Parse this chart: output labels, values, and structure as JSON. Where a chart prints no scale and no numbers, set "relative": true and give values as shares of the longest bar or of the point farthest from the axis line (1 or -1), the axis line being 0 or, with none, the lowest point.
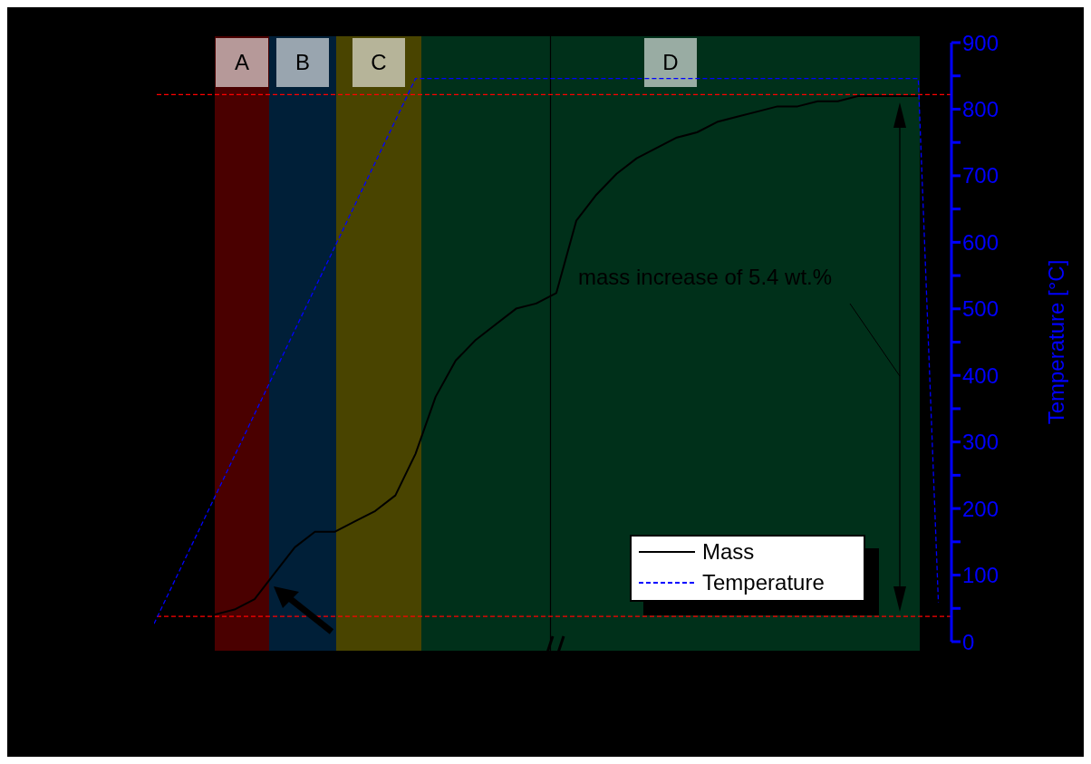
{
  "chart_data": [
    {
      "type": "line",
      "ylabel": "Temperature [°C]",
      "categories": [
        null,
        null,
        null,
        null,
        null,
        null,
        null,
        null,
        null,
        null,
        null,
        null,
        null,
        null,
        null,
        null,
        null,
        null,
        null,
        null,
        null,
        null,
        null,
        null,
        null,
        null,
        null,
        null,
        null,
        null,
        null,
        null,
        null,
        null,
        null,
        null,
        null,
        null,
        null,
        null
      ],
      "series": [
        {
          "name": "Temperature",
          "color": "#0000ff",
          "line_style": "dashed",
          "values": [
            27,
            90,
            153,
            216,
            279,
            342,
            405,
            468,
            531,
            594,
            657,
            720,
            783,
            846,
            846,
            846,
            846,
            846,
            846,
            846,
            846,
            846,
            846,
            846,
            846,
            846,
            846,
            846,
            846,
            846,
            846,
            846,
            846,
            846,
            846,
            846,
            846,
            846,
            846,
            59
          ]
        }
      ],
      "ylim": [
        0,
        900
      ],
      "yticks": [
        0,
        {
          "value": 50,
          "label": null
        },
        100,
        {
          "value": 150,
          "label": null
        },
        200,
        {
          "value": 250,
          "label": null
        },
        300,
        {
          "value": 350,
          "label": null
        },
        400,
        {
          "value": 450,
          "label": null
        },
        500,
        {
          "value": 550,
          "label": null
        },
        600,
        {
          "value": 650,
          "label": null
        },
        700,
        {
          "value": 750,
          "label": null
        },
        800,
        {
          "value": 850,
          "label": null
        },
        900
      ],
      "ref_lines": [
        {
          "axis": "y",
          "value": 38,
          "color": "#ff0000",
          "line_style": "dashed"
        },
        {
          "axis": "y",
          "value": 822,
          "color": "#ff0000",
          "line_style": "dashed"
        }
      ],
      "annotations": [
        "A",
        "B",
        "C",
        "D",
        "mass increase of 5.4 wt.%"
      ],
      "legend": "bottom right",
      "grid": false,
      "marker": "none"
    },
    {
      "type": "line",
      "relative": true,
      "categories": [
        null,
        null,
        null,
        null,
        null,
        null,
        null,
        null,
        null,
        null,
        null,
        null,
        null,
        null,
        null,
        null,
        null,
        null,
        null,
        null,
        null,
        null,
        null,
        null,
        null,
        null,
        null,
        null,
        null,
        null,
        null,
        null,
        null,
        null,
        null,
        null
      ],
      "series": [
        {
          "name": "Mass",
          "color": "#000000",
          "line_style": "solid",
          "values": [
            0,
            0.01,
            0.03,
            0.08,
            0.13,
            0.16,
            0.16,
            0.18,
            0.2,
            0.23,
            0.31,
            0.42,
            0.49,
            0.53,
            0.56,
            0.59,
            0.6,
            0.62,
            0.76,
            0.81,
            0.85,
            0.88,
            0.9,
            0.92,
            0.93,
            0.95,
            0.96,
            0.97,
            0.98,
            0.98,
            0.99,
            0.99,
            1,
            1,
            1,
            1
          ]
        }
      ],
      "legend": "bottom right",
      "grid": false,
      "marker": "none"
    }
  ]
}
